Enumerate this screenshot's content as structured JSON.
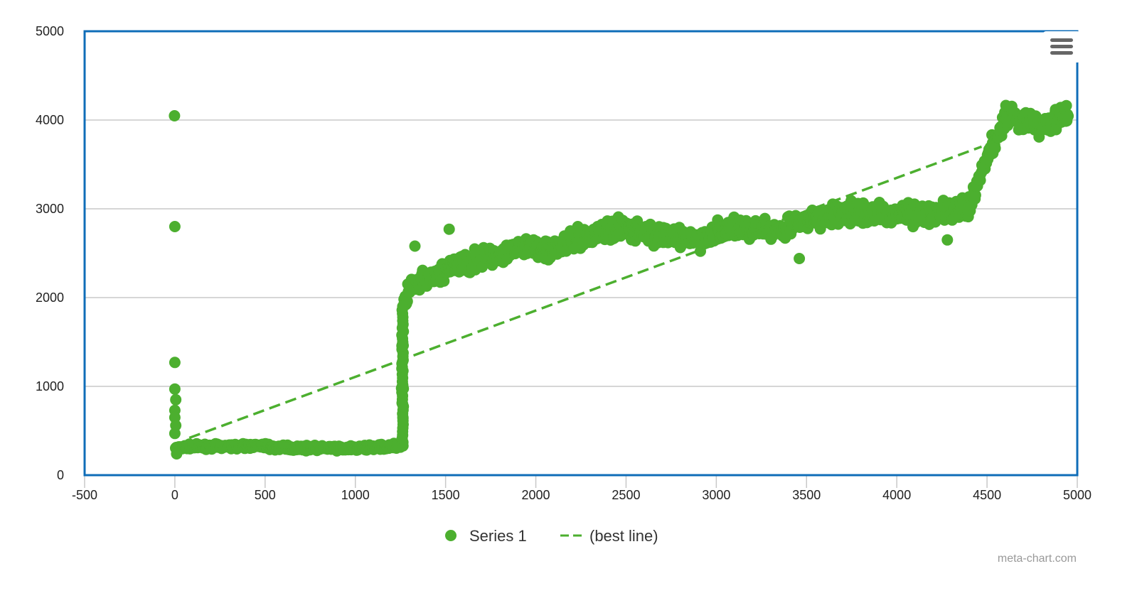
{
  "colors": {
    "series": "#4caf2f",
    "frame": "#0f6db8",
    "grid": "#c8c8c8",
    "menu_icon": "#666666"
  },
  "menu": {
    "icon": "hamburger-menu-icon"
  },
  "credit": "meta-chart.com",
  "chart_data": {
    "type": "scatter",
    "title": "",
    "xlabel": "",
    "ylabel": "",
    "xlim": [
      -500,
      5000
    ],
    "ylim": [
      0,
      5000
    ],
    "x_ticks": [
      -500,
      0,
      500,
      1000,
      1500,
      2000,
      2500,
      3000,
      3500,
      4000,
      4500,
      5000
    ],
    "y_ticks": [
      0,
      1000,
      2000,
      3000,
      4000,
      5000
    ],
    "grid": true,
    "legend": {
      "position": "bottom-center"
    },
    "series": [
      {
        "name": "Series 1",
        "marker": "circle",
        "profile": [
          [
            0,
            300
          ],
          [
            50,
            320
          ],
          [
            500,
            330
          ],
          [
            550,
            310
          ],
          [
            1000,
            300
          ],
          [
            1250,
            330
          ],
          [
            1265,
            1900
          ],
          [
            1300,
            2100
          ],
          [
            1500,
            2300
          ],
          [
            1700,
            2450
          ],
          [
            1900,
            2550
          ],
          [
            2100,
            2550
          ],
          [
            2300,
            2700
          ],
          [
            2500,
            2800
          ],
          [
            2700,
            2700
          ],
          [
            2900,
            2650
          ],
          [
            3100,
            2800
          ],
          [
            3300,
            2750
          ],
          [
            3500,
            2850
          ],
          [
            3700,
            2950
          ],
          [
            4000,
            2950
          ],
          [
            4200,
            2950
          ],
          [
            4400,
            3000
          ],
          [
            4450,
            3300
          ],
          [
            4500,
            3600
          ],
          [
            4550,
            3800
          ],
          [
            4600,
            4050
          ],
          [
            4700,
            4000
          ],
          [
            4800,
            3950
          ],
          [
            4950,
            4050
          ]
        ],
        "outliers": [
          [
            0,
            2800
          ],
          [
            0,
            1270
          ],
          [
            0,
            970
          ],
          [
            5,
            850
          ],
          [
            0,
            730
          ],
          [
            0,
            650
          ],
          [
            5,
            560
          ],
          [
            0,
            470
          ],
          [
            10,
            240
          ],
          [
            1520,
            2770
          ],
          [
            1330,
            2580
          ],
          [
            3460,
            2440
          ],
          [
            4280,
            2650
          ],
          [
            1265,
            1460
          ],
          [
            1262,
            1280
          ],
          [
            1260,
            1000
          ],
          [
            1262,
            800
          ],
          [
            1264,
            640
          ]
        ],
        "point_count": 1500
      },
      {
        "name": "(best line)",
        "style": "dashed",
        "x": [
          80,
          4470
        ],
        "y": [
          420,
          3700
        ]
      }
    ]
  }
}
